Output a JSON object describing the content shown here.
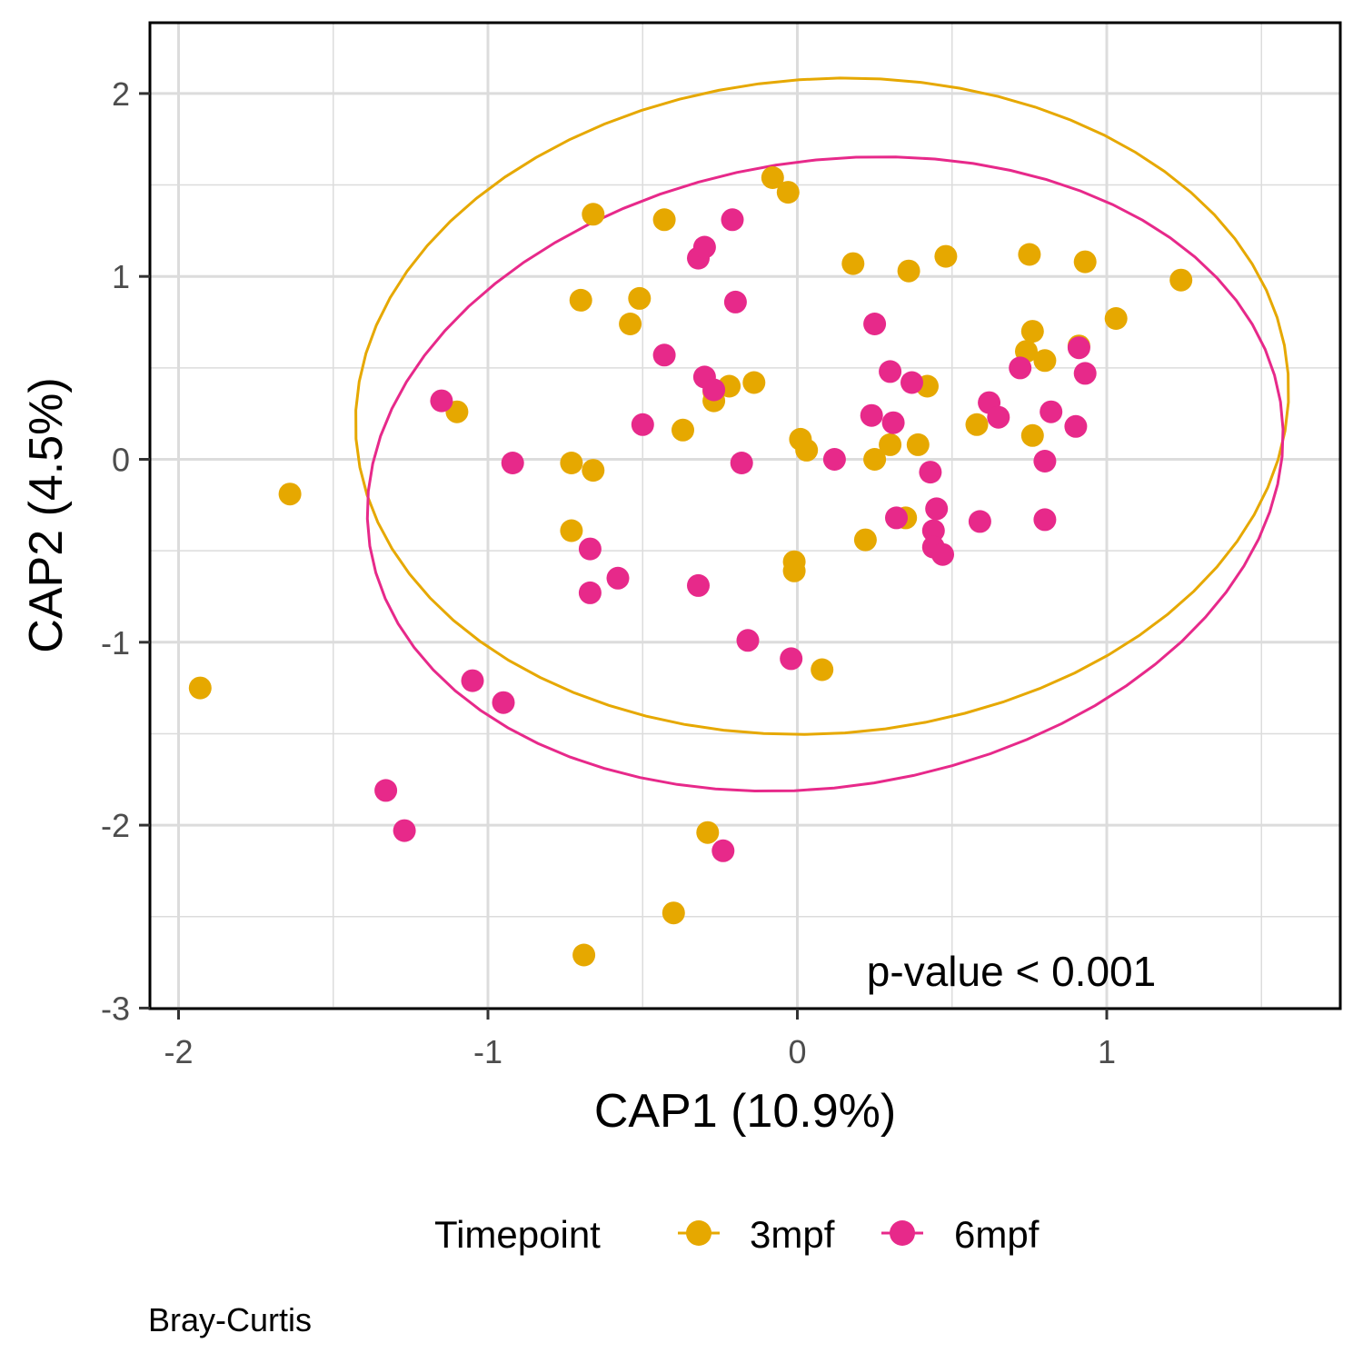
{
  "chart_data": {
    "type": "scatter",
    "xlabel": "CAP1 (10.9%)",
    "ylabel": "CAP2 (4.5%)",
    "xlim": [
      -2.09,
      1.76
    ],
    "ylim": [
      -3.0,
      2.4
    ],
    "x_ticks": [
      -2,
      -1,
      0,
      1
    ],
    "y_ticks": [
      -3,
      -2,
      -1,
      0,
      1,
      2
    ],
    "grid": true,
    "annotation": "p-value < 0.001",
    "caption": "Bray-Curtis",
    "legend": {
      "title": "Timepoint",
      "position": "bottom"
    },
    "series": [
      {
        "name": "3mpf",
        "color": "#E6A800",
        "points": [
          [
            -1.93,
            -1.25
          ],
          [
            -1.64,
            -0.19
          ],
          [
            -1.1,
            0.26
          ],
          [
            -0.73,
            -0.02
          ],
          [
            -0.73,
            -0.39
          ],
          [
            -0.66,
            -0.06
          ],
          [
            -0.7,
            0.87
          ],
          [
            -0.66,
            1.34
          ],
          [
            -0.54,
            0.74
          ],
          [
            -0.51,
            0.88
          ],
          [
            -0.43,
            1.31
          ],
          [
            -0.37,
            0.16
          ],
          [
            -0.27,
            0.32
          ],
          [
            -0.27,
            0.37
          ],
          [
            -0.22,
            0.4
          ],
          [
            -0.14,
            0.42
          ],
          [
            -0.08,
            1.54
          ],
          [
            -0.03,
            1.46
          ],
          [
            0.01,
            0.11
          ],
          [
            0.03,
            0.05
          ],
          [
            -0.01,
            -0.56
          ],
          [
            -0.01,
            -0.61
          ],
          [
            0.08,
            -1.15
          ],
          [
            0.18,
            1.07
          ],
          [
            0.25,
            0.0
          ],
          [
            0.3,
            0.08
          ],
          [
            0.36,
            1.03
          ],
          [
            0.39,
            0.08
          ],
          [
            0.42,
            0.4
          ],
          [
            0.48,
            1.11
          ],
          [
            0.35,
            -0.32
          ],
          [
            0.22,
            -0.44
          ],
          [
            0.58,
            0.19
          ],
          [
            0.74,
            0.59
          ],
          [
            0.75,
            1.12
          ],
          [
            0.76,
            0.7
          ],
          [
            0.76,
            0.13
          ],
          [
            0.8,
            0.54
          ],
          [
            0.91,
            0.62
          ],
          [
            0.93,
            1.08
          ],
          [
            1.03,
            0.77
          ],
          [
            1.24,
            0.98
          ],
          [
            -0.29,
            -2.04
          ],
          [
            -0.4,
            -2.48
          ],
          [
            -0.69,
            -2.71
          ]
        ]
      },
      {
        "name": "6mpf",
        "color": "#E7298A",
        "points": [
          [
            -1.15,
            0.32
          ],
          [
            -0.92,
            -0.02
          ],
          [
            -0.67,
            -0.49
          ],
          [
            -0.67,
            -0.73
          ],
          [
            -0.58,
            -0.65
          ],
          [
            -0.5,
            0.19
          ],
          [
            -0.43,
            0.57
          ],
          [
            -0.32,
            1.1
          ],
          [
            -0.3,
            1.16
          ],
          [
            -0.3,
            0.45
          ],
          [
            -0.27,
            0.38
          ],
          [
            -0.21,
            1.31
          ],
          [
            -0.2,
            0.86
          ],
          [
            -0.18,
            -0.02
          ],
          [
            -0.32,
            -0.69
          ],
          [
            -0.16,
            -0.99
          ],
          [
            -0.02,
            -1.09
          ],
          [
            0.12,
            0.0
          ],
          [
            0.25,
            0.74
          ],
          [
            0.24,
            0.24
          ],
          [
            0.3,
            0.48
          ],
          [
            0.31,
            0.2
          ],
          [
            0.32,
            -0.32
          ],
          [
            0.37,
            0.42
          ],
          [
            0.43,
            -0.07
          ],
          [
            0.45,
            -0.27
          ],
          [
            0.44,
            -0.39
          ],
          [
            0.44,
            -0.48
          ],
          [
            0.47,
            -0.52
          ],
          [
            0.59,
            -0.34
          ],
          [
            0.62,
            0.31
          ],
          [
            0.65,
            0.23
          ],
          [
            0.72,
            0.5
          ],
          [
            0.8,
            -0.01
          ],
          [
            0.8,
            -0.33
          ],
          [
            0.82,
            0.26
          ],
          [
            0.9,
            0.18
          ],
          [
            0.91,
            0.61
          ],
          [
            0.93,
            0.47
          ],
          [
            -1.05,
            -1.21
          ],
          [
            -0.95,
            -1.33
          ],
          [
            -1.33,
            -1.81
          ],
          [
            -1.27,
            -2.03
          ],
          [
            -0.24,
            -2.14
          ]
        ]
      }
    ],
    "ellipses": [
      {
        "series": "3mpf",
        "center": [
          0.08,
          0.29
        ],
        "radius_x": 1.51,
        "radius_y": 1.79,
        "rotation_deg": -4
      },
      {
        "series": "6mpf",
        "center": [
          0.09,
          -0.08
        ],
        "radius_x": 1.49,
        "radius_y": 1.71,
        "rotation_deg": -9
      }
    ]
  }
}
